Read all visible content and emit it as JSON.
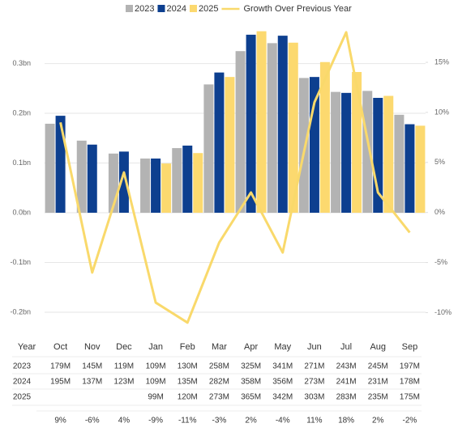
{
  "chart_data": {
    "type": "bar-line",
    "categories": [
      "Oct",
      "Nov",
      "Dec",
      "Jan",
      "Feb",
      "Mar",
      "Apr",
      "May",
      "Jun",
      "Jul",
      "Aug",
      "Sep"
    ],
    "series": [
      {
        "name": "2023",
        "color": "#b3b3b3",
        "values": [
          0.179,
          0.145,
          0.119,
          0.109,
          0.13,
          0.258,
          0.325,
          0.341,
          0.271,
          0.243,
          0.245,
          0.197
        ],
        "value_labels": [
          "179M",
          "145M",
          "119M",
          "109M",
          "130M",
          "258M",
          "325M",
          "341M",
          "271M",
          "243M",
          "245M",
          "197M"
        ]
      },
      {
        "name": "2024",
        "color": "#0d3f8f",
        "values": [
          0.195,
          0.137,
          0.123,
          0.109,
          0.135,
          0.282,
          0.358,
          0.356,
          0.273,
          0.241,
          0.231,
          0.178
        ],
        "value_labels": [
          "195M",
          "137M",
          "123M",
          "109M",
          "135M",
          "282M",
          "358M",
          "356M",
          "273M",
          "241M",
          "231M",
          "178M"
        ]
      },
      {
        "name": "2025",
        "color": "#fcd96f",
        "values": [
          null,
          null,
          null,
          0.099,
          0.12,
          0.273,
          0.365,
          0.342,
          0.303,
          0.283,
          0.235,
          0.175
        ],
        "value_labels": [
          null,
          null,
          null,
          "99M",
          "120M",
          "273M",
          "365M",
          "342M",
          "303M",
          "283M",
          "235M",
          "175M"
        ]
      },
      {
        "name": "Growth Over Previous Year",
        "color": "#f9d96b",
        "axis": "y2",
        "values": [
          9,
          -6,
          4,
          -9,
          -11,
          -3,
          2,
          -4,
          11,
          18,
          2,
          -2
        ],
        "value_labels": [
          "9%",
          "-6%",
          "4%",
          "-9%",
          "-11%",
          "-3%",
          "2%",
          "-4%",
          "11%",
          "18%",
          "2%",
          "-2%"
        ]
      }
    ],
    "ylim": [
      -0.231,
      0.379
    ],
    "yticks": [
      {
        "value": -0.2,
        "label": "-0.2bn"
      },
      {
        "value": -0.1,
        "label": "-0.1bn"
      },
      {
        "value": 0,
        "label": "0.0bn"
      },
      {
        "value": 0.1,
        "label": "0.1bn"
      },
      {
        "value": 0.2,
        "label": "0.2bn"
      },
      {
        "value": 0.3,
        "label": "0.3bn"
      }
    ],
    "y2lim": [
      -11.5,
      18.8
    ],
    "y2ticks": [
      {
        "value": -10,
        "label": "-10%"
      },
      {
        "value": -5,
        "label": "-5%"
      },
      {
        "value": 0,
        "label": "0%"
      },
      {
        "value": 5,
        "label": "5%"
      },
      {
        "value": 10,
        "label": "10%"
      },
      {
        "value": 15,
        "label": "15%"
      }
    ],
    "grid": true,
    "legend": "top",
    "table_header": "Year"
  }
}
